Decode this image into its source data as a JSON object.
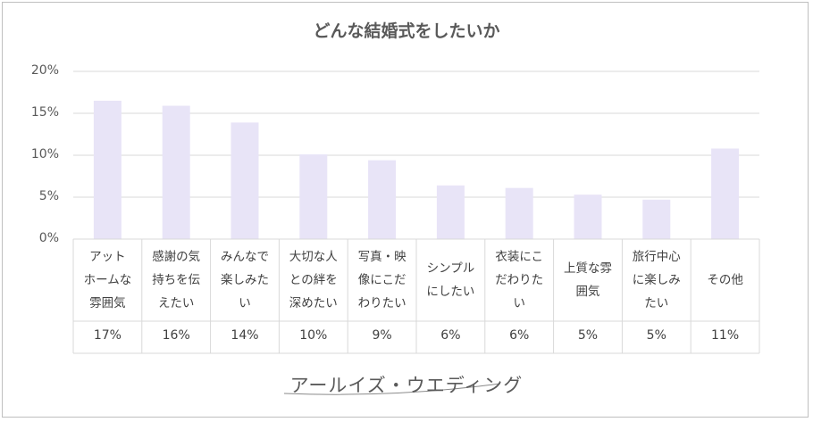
{
  "chart_data": {
    "type": "bar",
    "title": "どんな結婚式をしたいか",
    "categories": [
      [
        "アット",
        "ホームな",
        "雰囲気"
      ],
      [
        "感謝の気",
        "持ちを伝",
        "えたい"
      ],
      [
        "みんなで",
        "楽しみた",
        "い"
      ],
      [
        "大切な人",
        "との絆を",
        "深めたい"
      ],
      [
        "写真・映",
        "像にこだ",
        "わりたい"
      ],
      [
        "シンプル",
        "にしたい"
      ],
      [
        "衣装にこ",
        "だわりた",
        "い"
      ],
      [
        "上質な雰",
        "囲気"
      ],
      [
        "旅行中心",
        "に楽しみ",
        "たい"
      ],
      [
        "その他"
      ]
    ],
    "values": [
      16.5,
      15.9,
      13.9,
      10.1,
      9.4,
      6.4,
      6.1,
      5.3,
      4.7,
      10.8
    ],
    "table_labels": [
      "17%",
      "16%",
      "14%",
      "10%",
      "9%",
      "6%",
      "6%",
      "5%",
      "5%",
      "11%"
    ],
    "yticks": [
      "0%",
      "5%",
      "10%",
      "15%",
      "20%"
    ],
    "ylim": [
      0,
      20
    ],
    "grid": true,
    "bar_color": "#e8e4f7"
  },
  "brand": "アールイズ・ウエディング"
}
